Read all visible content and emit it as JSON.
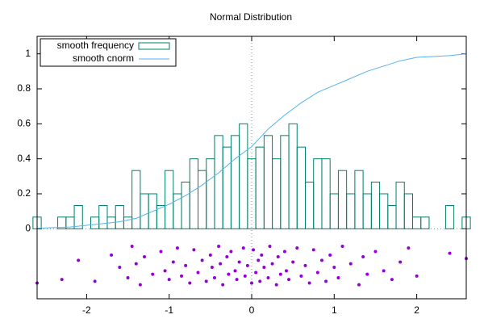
{
  "chart_data": {
    "type": "combo",
    "title": "Normal Distribution",
    "xlim": [
      -2.6,
      2.6
    ],
    "ylim": [
      -0.4,
      1.1
    ],
    "xticks": [
      -2,
      -1,
      0,
      1,
      2
    ],
    "yticks": [
      0,
      0.2,
      0.4,
      0.6,
      0.8,
      1
    ],
    "zeroaxis": true,
    "legend": "top-left",
    "series": [
      {
        "name": "smooth frequency",
        "type": "steps",
        "color": "#00806a",
        "width": 0.1,
        "x": [
          -2.6,
          -2.5,
          -2.4,
          -2.3,
          -2.2,
          -2.1,
          -2.0,
          -1.9,
          -1.8,
          -1.7,
          -1.6,
          -1.5,
          -1.4,
          -1.3,
          -1.2,
          -1.1,
          -1.0,
          -0.9,
          -0.8,
          -0.7,
          -0.6,
          -0.5,
          -0.4,
          -0.3,
          -0.2,
          -0.1,
          0.0,
          0.1,
          0.2,
          0.3,
          0.4,
          0.5,
          0.6,
          0.7,
          0.8,
          0.9,
          1.0,
          1.1,
          1.2,
          1.3,
          1.4,
          1.5,
          1.6,
          1.7,
          1.8,
          1.9,
          2.0,
          2.1,
          2.2,
          2.3,
          2.4,
          2.5,
          2.6
        ],
        "values": [
          0.067,
          0,
          0,
          0.067,
          0.067,
          0.133,
          0,
          0.067,
          0.133,
          0.067,
          0.133,
          0.067,
          0.333,
          0.2,
          0.2,
          0.133,
          0.333,
          0.2,
          0.267,
          0.4,
          0.333,
          0.4,
          0.533,
          0.467,
          0.533,
          0.6,
          0.4,
          0.467,
          0.533,
          0.4,
          0.533,
          0.6,
          0.467,
          0.267,
          0.4,
          0.4,
          0.2,
          0.333,
          0.2,
          0.333,
          0.2,
          0.267,
          0.2,
          0.133,
          0.267,
          0.2,
          0.067,
          0.067,
          0,
          0,
          0.133,
          0,
          0.067
        ]
      },
      {
        "name": "smooth cnorm",
        "type": "line",
        "color": "#56b4e9",
        "x": [
          -2.6,
          -2.2,
          -2.0,
          -1.6,
          -1.4,
          -1.2,
          -1.0,
          -0.8,
          -0.6,
          -0.4,
          -0.2,
          0,
          0.1,
          0.2,
          0.4,
          0.6,
          0.8,
          1.0,
          1.2,
          1.4,
          1.6,
          1.8,
          2.0,
          2.4,
          2.6
        ],
        "values": [
          0.003,
          0.01,
          0.02,
          0.04,
          0.06,
          0.1,
          0.14,
          0.19,
          0.25,
          0.32,
          0.4,
          0.47,
          0.52,
          0.57,
          0.65,
          0.72,
          0.78,
          0.82,
          0.86,
          0.9,
          0.93,
          0.96,
          0.98,
          0.99,
          1.0
        ]
      },
      {
        "type": "scatter",
        "color": "#9400d3",
        "x": [
          -2.6,
          -2.3,
          -2.1,
          -1.9,
          -1.7,
          -1.6,
          -1.5,
          -1.45,
          -1.4,
          -1.35,
          -1.3,
          -1.2,
          -1.1,
          -1.05,
          -1.0,
          -0.95,
          -0.9,
          -0.85,
          -0.8,
          -0.75,
          -0.7,
          -0.65,
          -0.6,
          -0.55,
          -0.5,
          -0.48,
          -0.45,
          -0.4,
          -0.38,
          -0.35,
          -0.3,
          -0.28,
          -0.25,
          -0.2,
          -0.18,
          -0.15,
          -0.1,
          -0.08,
          -0.05,
          0.0,
          0.02,
          0.05,
          0.08,
          0.1,
          0.12,
          0.15,
          0.2,
          0.22,
          0.25,
          0.3,
          0.32,
          0.35,
          0.4,
          0.42,
          0.45,
          0.5,
          0.55,
          0.6,
          0.65,
          0.7,
          0.75,
          0.8,
          0.85,
          0.9,
          0.95,
          1.0,
          1.05,
          1.1,
          1.2,
          1.3,
          1.35,
          1.4,
          1.5,
          1.6,
          1.7,
          1.8,
          1.9,
          2.0,
          2.4,
          2.6
        ],
        "values": [
          -0.31,
          -0.29,
          -0.18,
          -0.3,
          -0.15,
          -0.22,
          -0.28,
          -0.1,
          -0.2,
          -0.32,
          -0.16,
          -0.26,
          -0.13,
          -0.24,
          -0.29,
          -0.19,
          -0.11,
          -0.27,
          -0.21,
          -0.31,
          -0.12,
          -0.25,
          -0.18,
          -0.3,
          -0.15,
          -0.22,
          -0.28,
          -0.1,
          -0.2,
          -0.32,
          -0.16,
          -0.26,
          -0.13,
          -0.24,
          -0.29,
          -0.19,
          -0.11,
          -0.27,
          -0.21,
          -0.31,
          -0.12,
          -0.25,
          -0.18,
          -0.3,
          -0.15,
          -0.22,
          -0.28,
          -0.1,
          -0.2,
          -0.32,
          -0.16,
          -0.26,
          -0.13,
          -0.24,
          -0.29,
          -0.19,
          -0.11,
          -0.27,
          -0.21,
          -0.31,
          -0.12,
          -0.25,
          -0.18,
          -0.3,
          -0.15,
          -0.22,
          -0.28,
          -0.1,
          -0.2,
          -0.32,
          -0.16,
          -0.26,
          -0.13,
          -0.24,
          -0.29,
          -0.19,
          -0.11,
          -0.27,
          -0.14,
          -0.17
        ]
      }
    ]
  }
}
